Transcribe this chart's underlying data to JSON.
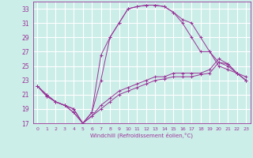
{
  "xlabel": "Windchill (Refroidissement éolien,°C)",
  "bg_color": "#cceee8",
  "grid_color": "#ffffff",
  "line_color": "#993399",
  "spine_color": "#993399",
  "xlim": [
    -0.5,
    23.5
  ],
  "ylim": [
    17,
    34
  ],
  "xticks": [
    0,
    1,
    2,
    3,
    4,
    5,
    6,
    7,
    8,
    9,
    10,
    11,
    12,
    13,
    14,
    15,
    16,
    17,
    18,
    19,
    20,
    21,
    22,
    23
  ],
  "yticks": [
    17,
    19,
    21,
    23,
    25,
    27,
    29,
    31,
    33
  ],
  "line1_x": [
    0,
    1,
    2,
    3,
    4,
    5,
    6,
    7,
    8,
    9,
    10,
    11,
    12,
    13,
    14,
    15,
    16,
    17,
    18,
    19,
    20,
    21,
    22,
    23
  ],
  "line1_y": [
    22.2,
    21.0,
    20.0,
    19.5,
    18.5,
    17.0,
    18.5,
    23.0,
    29.0,
    31.0,
    33.0,
    33.3,
    33.5,
    33.5,
    33.3,
    32.5,
    31.5,
    31.0,
    29.0,
    27.0,
    25.0,
    24.5,
    24.0,
    23.5
  ],
  "line2_x": [
    0,
    1,
    2,
    3,
    4,
    5,
    6,
    7,
    8,
    9,
    10,
    11,
    12,
    13,
    14,
    15,
    16,
    17,
    18,
    19,
    20,
    21,
    22,
    23
  ],
  "line2_y": [
    22.2,
    21.0,
    20.0,
    19.5,
    18.5,
    17.0,
    18.5,
    26.5,
    29.0,
    31.0,
    33.0,
    33.3,
    33.5,
    33.5,
    33.3,
    32.5,
    31.0,
    29.0,
    27.0,
    27.0,
    25.5,
    25.0,
    24.0,
    23.0
  ],
  "line3_x": [
    0,
    1,
    2,
    3,
    4,
    5,
    6,
    7,
    8,
    9,
    10,
    11,
    12,
    13,
    14,
    15,
    16,
    17,
    18,
    19,
    20,
    21,
    22,
    23
  ],
  "line3_y": [
    22.2,
    20.8,
    20.0,
    19.5,
    19.0,
    17.0,
    18.0,
    19.0,
    20.0,
    21.0,
    21.5,
    22.0,
    22.5,
    23.0,
    23.2,
    23.5,
    23.5,
    23.5,
    23.8,
    24.0,
    25.5,
    25.3,
    24.0,
    23.0
  ],
  "line4_x": [
    0,
    1,
    2,
    3,
    4,
    5,
    6,
    7,
    8,
    9,
    10,
    11,
    12,
    13,
    14,
    15,
    16,
    17,
    18,
    19,
    20,
    21,
    22,
    23
  ],
  "line4_y": [
    22.2,
    20.8,
    20.0,
    19.5,
    19.0,
    17.0,
    18.0,
    19.5,
    20.5,
    21.5,
    22.0,
    22.5,
    23.0,
    23.5,
    23.5,
    24.0,
    24.0,
    24.0,
    24.0,
    24.5,
    26.0,
    25.3,
    24.0,
    23.0
  ]
}
